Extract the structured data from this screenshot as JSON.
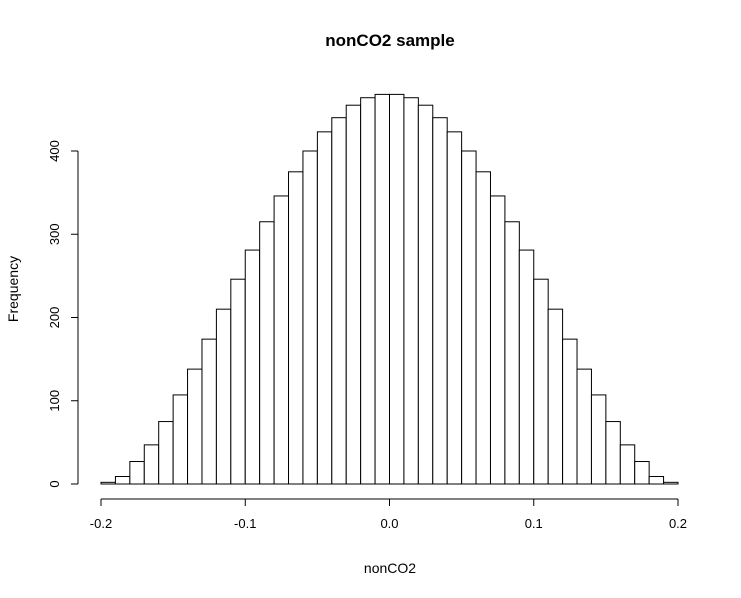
{
  "chart_data": {
    "type": "bar",
    "title": "nonCO2 sample",
    "xlabel": "nonCO2",
    "ylabel": "Frequency",
    "bin_start": -0.2,
    "bin_width": 0.01,
    "values": [
      2,
      9,
      27,
      47,
      75,
      107,
      138,
      174,
      210,
      246,
      281,
      315,
      346,
      375,
      400,
      423,
      440,
      455,
      464,
      468,
      468,
      464,
      455,
      440,
      423,
      400,
      375,
      346,
      315,
      281,
      246,
      210,
      174,
      138,
      107,
      75,
      47,
      27,
      9,
      2
    ],
    "xlim": [
      -0.2,
      0.2
    ],
    "ylim": [
      0,
      470
    ],
    "xticks": [
      -0.2,
      -0.1,
      0.0,
      0.1,
      0.2
    ],
    "xtick_labels": [
      "-0.2",
      "-0.1",
      "0.0",
      "0.1",
      "0.2"
    ],
    "yticks": [
      0,
      100,
      200,
      300,
      400
    ],
    "ytick_labels": [
      "0",
      "100",
      "200",
      "300",
      "400"
    ],
    "grid": false,
    "legend": "none"
  }
}
